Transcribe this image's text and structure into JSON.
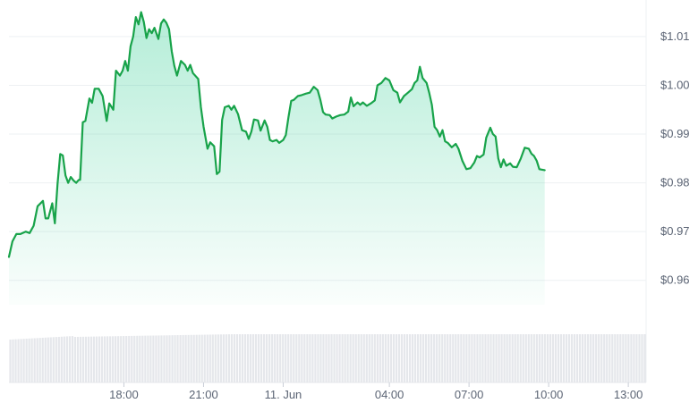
{
  "chart_data": {
    "type": "area",
    "title": "",
    "xlabel": "",
    "ylabel": "",
    "ylim": [
      0.955,
      1.0175
    ],
    "y_ticks": [
      "$1.01",
      "$1.00",
      "$0.99",
      "$0.98",
      "$0.97",
      "$0.96"
    ],
    "y_tick_values": [
      1.01,
      1.0,
      0.99,
      0.98,
      0.97,
      0.96
    ],
    "x_ticks": [
      "18:00",
      "21:00",
      "11. Jun",
      "04:00",
      "07:00",
      "10:00",
      "13:00"
    ],
    "x_tick_hours": [
      18,
      21,
      24,
      28,
      31,
      34,
      37
    ],
    "x_range_hours": [
      13.67,
      37.67
    ],
    "grid": true,
    "line_color": "#16c784",
    "line_stroke": "#18a34a",
    "volume_color": "#e5e7eb",
    "series": [
      {
        "values": [
          [
            13.67,
            0.9648
          ],
          [
            13.8,
            0.968
          ],
          [
            13.95,
            0.9695
          ],
          [
            14.1,
            0.9695
          ],
          [
            14.3,
            0.97
          ],
          [
            14.45,
            0.9697
          ],
          [
            14.6,
            0.9712
          ],
          [
            14.75,
            0.9752
          ],
          [
            14.95,
            0.9763
          ],
          [
            15.05,
            0.9727
          ],
          [
            15.15,
            0.9727
          ],
          [
            15.3,
            0.9758
          ],
          [
            15.4,
            0.9717
          ],
          [
            15.5,
            0.9798
          ],
          [
            15.6,
            0.9859
          ],
          [
            15.7,
            0.9856
          ],
          [
            15.8,
            0.9815
          ],
          [
            15.9,
            0.98
          ],
          [
            16.0,
            0.9812
          ],
          [
            16.1,
            0.9805
          ],
          [
            16.2,
            0.98
          ],
          [
            16.3,
            0.9806
          ],
          [
            16.35,
            0.9806
          ],
          [
            16.45,
            0.9924
          ],
          [
            16.55,
            0.9927
          ],
          [
            16.7,
            0.9973
          ],
          [
            16.8,
            0.9964
          ],
          [
            16.9,
            0.9993
          ],
          [
            17.05,
            0.9993
          ],
          [
            17.2,
            0.9978
          ],
          [
            17.35,
            0.9927
          ],
          [
            17.45,
            0.9963
          ],
          [
            17.6,
            0.995
          ],
          [
            17.7,
            1.003
          ],
          [
            17.85,
            1.002
          ],
          [
            17.95,
            1.003
          ],
          [
            18.05,
            1.005
          ],
          [
            18.15,
            1.003
          ],
          [
            18.25,
            1.008
          ],
          [
            18.35,
            1.01
          ],
          [
            18.45,
            1.014
          ],
          [
            18.55,
            1.0125
          ],
          [
            18.65,
            1.015
          ],
          [
            18.75,
            1.013
          ],
          [
            18.85,
            1.0097
          ],
          [
            18.95,
            1.0115
          ],
          [
            19.05,
            1.0107
          ],
          [
            19.15,
            1.0118
          ],
          [
            19.3,
            1.0095
          ],
          [
            19.4,
            1.0127
          ],
          [
            19.5,
            1.0135
          ],
          [
            19.6,
            1.0128
          ],
          [
            19.7,
            1.0115
          ],
          [
            19.8,
            1.007
          ],
          [
            19.9,
            1.004
          ],
          [
            20.0,
            1.002
          ],
          [
            20.15,
            1.005
          ],
          [
            20.3,
            1.0042
          ],
          [
            20.4,
            1.003
          ],
          [
            20.5,
            1.0042
          ],
          [
            20.6,
            1.0025
          ],
          [
            20.8,
            1.0013
          ],
          [
            20.9,
            0.9955
          ],
          [
            21.0,
            0.9915
          ],
          [
            21.15,
            0.987
          ],
          [
            21.25,
            0.9883
          ],
          [
            21.4,
            0.9875
          ],
          [
            21.5,
            0.9818
          ],
          [
            21.6,
            0.9823
          ],
          [
            21.7,
            0.9929
          ],
          [
            21.8,
            0.9955
          ],
          [
            21.95,
            0.9958
          ],
          [
            22.05,
            0.995
          ],
          [
            22.15,
            0.9958
          ],
          [
            22.3,
            0.9941
          ],
          [
            22.45,
            0.9908
          ],
          [
            22.6,
            0.9905
          ],
          [
            22.7,
            0.989
          ],
          [
            22.8,
            0.9905
          ],
          [
            22.9,
            0.993
          ],
          [
            23.05,
            0.9928
          ],
          [
            23.15,
            0.9907
          ],
          [
            23.3,
            0.9928
          ],
          [
            23.4,
            0.9915
          ],
          [
            23.5,
            0.9888
          ],
          [
            23.6,
            0.9885
          ],
          [
            23.75,
            0.9888
          ],
          [
            23.85,
            0.9882
          ],
          [
            24.0,
            0.9888
          ],
          [
            24.1,
            0.9898
          ],
          [
            24.2,
            0.9935
          ],
          [
            24.3,
            0.9968
          ],
          [
            24.4,
            0.997
          ],
          [
            24.55,
            0.9978
          ],
          [
            24.7,
            0.998
          ],
          [
            24.85,
            0.9983
          ],
          [
            25.0,
            0.9985
          ],
          [
            25.15,
            0.9997
          ],
          [
            25.3,
            0.999
          ],
          [
            25.4,
            0.997
          ],
          [
            25.5,
            0.9945
          ],
          [
            25.6,
            0.994
          ],
          [
            25.75,
            0.9939
          ],
          [
            25.85,
            0.9932
          ],
          [
            26.0,
            0.9936
          ],
          [
            26.15,
            0.9939
          ],
          [
            26.3,
            0.994
          ],
          [
            26.45,
            0.9946
          ],
          [
            26.55,
            0.9975
          ],
          [
            26.65,
            0.9957
          ],
          [
            26.8,
            0.9965
          ],
          [
            26.9,
            0.996
          ],
          [
            27.0,
            0.9965
          ],
          [
            27.15,
            0.9958
          ],
          [
            27.3,
            0.9963
          ],
          [
            27.45,
            0.9969
          ],
          [
            27.55,
            1.0
          ],
          [
            27.7,
            1.0005
          ],
          [
            27.85,
            1.0015
          ],
          [
            28.0,
            1.001
          ],
          [
            28.15,
            0.999
          ],
          [
            28.3,
            0.9985
          ],
          [
            28.4,
            0.9965
          ],
          [
            28.55,
            0.9978
          ],
          [
            28.7,
            0.9985
          ],
          [
            28.85,
            0.9992
          ],
          [
            28.95,
            1.0005
          ],
          [
            29.05,
            1.001
          ],
          [
            29.15,
            1.0038
          ],
          [
            29.25,
            1.0015
          ],
          [
            29.4,
            1.0005
          ],
          [
            29.5,
            0.9985
          ],
          [
            29.6,
            0.996
          ],
          [
            29.7,
            0.9915
          ],
          [
            29.8,
            0.9908
          ],
          [
            29.9,
            0.9895
          ],
          [
            30.0,
            0.9908
          ],
          [
            30.1,
            0.9885
          ],
          [
            30.2,
            0.9882
          ],
          [
            30.35,
            0.9873
          ],
          [
            30.5,
            0.988
          ],
          [
            30.6,
            0.987
          ],
          [
            30.75,
            0.9845
          ],
          [
            30.9,
            0.9828
          ],
          [
            31.05,
            0.983
          ],
          [
            31.2,
            0.9842
          ],
          [
            31.3,
            0.9855
          ],
          [
            31.4,
            0.9852
          ],
          [
            31.55,
            0.9858
          ],
          [
            31.65,
            0.9893
          ],
          [
            31.8,
            0.9913
          ],
          [
            31.9,
            0.99
          ],
          [
            32.0,
            0.9895
          ],
          [
            32.1,
            0.985
          ],
          [
            32.2,
            0.9832
          ],
          [
            32.3,
            0.9848
          ],
          [
            32.4,
            0.9835
          ],
          [
            32.55,
            0.984
          ],
          [
            32.65,
            0.9833
          ],
          [
            32.8,
            0.9832
          ],
          [
            32.95,
            0.985
          ],
          [
            33.1,
            0.9872
          ],
          [
            33.25,
            0.987
          ],
          [
            33.35,
            0.986
          ],
          [
            33.45,
            0.9855
          ],
          [
            33.55,
            0.9845
          ],
          [
            33.65,
            0.9828
          ],
          [
            33.85,
            0.9826
          ]
        ]
      }
    ]
  }
}
